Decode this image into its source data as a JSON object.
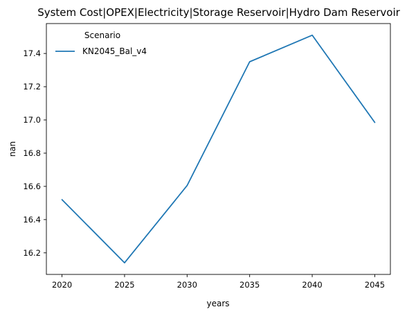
{
  "chart_data": {
    "type": "line",
    "title": "System Cost|OPEX|Electricity|Storage Reservoir|Hydro Dam Reservoir",
    "xlabel": "years",
    "ylabel": "nan",
    "x": [
      2020,
      2025,
      2030,
      2035,
      2040,
      2045
    ],
    "series": [
      {
        "name": "KN2045_Bal_v4",
        "color": "#1f77b4",
        "values": [
          16.52,
          16.14,
          16.605,
          17.35,
          17.51,
          16.985
        ]
      }
    ],
    "xlim": [
      2018.75,
      2046.25
    ],
    "ylim": [
      16.07,
      17.58
    ],
    "xticks": [
      2020,
      2025,
      2030,
      2035,
      2040,
      2045
    ],
    "xtick_labels": [
      "2020",
      "2025",
      "2030",
      "2035",
      "2040",
      "2045"
    ],
    "yticks": [
      16.2,
      16.4,
      16.6,
      16.8,
      17.0,
      17.2,
      17.4
    ],
    "ytick_labels": [
      "16.2",
      "16.4",
      "16.6",
      "16.8",
      "17.0",
      "17.2",
      "17.4"
    ],
    "legend": {
      "title": "Scenario",
      "position": "top-left"
    },
    "grid": false
  }
}
